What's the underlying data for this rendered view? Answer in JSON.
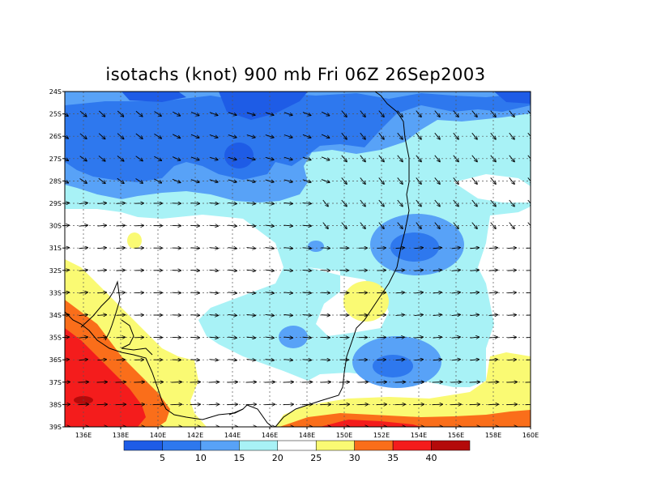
{
  "title": "isotachs (knot) 900 mb Fri 06Z 26Sep2003",
  "chart_data": {
    "type": "heatmap",
    "title": "isotachs (knot) 900 mb Fri 06Z 26Sep2003",
    "variable": "isotachs (knot)",
    "level": "900 mb",
    "valid_time": "Fri 06Z 26Sep2003",
    "lon_range": [
      135,
      160
    ],
    "lat_range": [
      -39,
      -24
    ],
    "lon_ticks": [
      "136E",
      "138E",
      "140E",
      "142E",
      "144E",
      "146E",
      "148E",
      "150E",
      "152E",
      "154E",
      "156E",
      "158E",
      "160E"
    ],
    "lat_ticks": [
      "24S",
      "25S",
      "26S",
      "27S",
      "28S",
      "29S",
      "30S",
      "31S",
      "32S",
      "33S",
      "34S",
      "35S",
      "36S",
      "37S",
      "38S",
      "39S"
    ],
    "contour_levels": [
      "5",
      "10",
      "15",
      "20",
      "25",
      "30",
      "35",
      "40"
    ],
    "colors": [
      "#1e5ce6",
      "#2e78ee",
      "#58a2f7",
      "#a8f2f6",
      "#ffffff",
      "#fafa73",
      "#fa6e1a",
      "#f41c1c",
      "#b40a0a"
    ],
    "grid": "dashed",
    "features": [
      "wind-vectors",
      "coastline"
    ]
  }
}
